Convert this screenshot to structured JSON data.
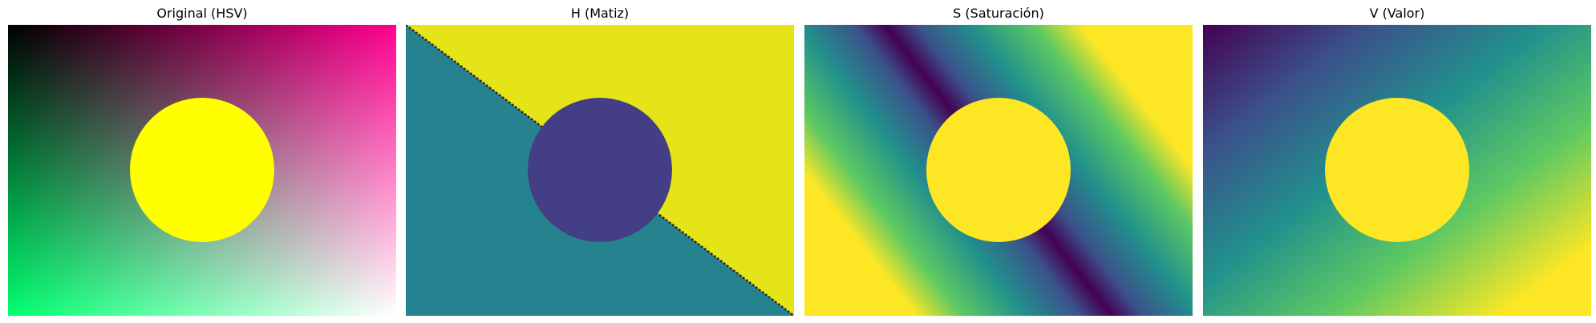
{
  "panels": [
    {
      "title": "Original (HSV)",
      "colors": {
        "top_left": "#000000",
        "top_right": "#ff0090",
        "bottom_left": "#00ff70",
        "bottom_right": "#ffffff",
        "circle": "#ffff00"
      }
    },
    {
      "title": "H (Matiz)",
      "colors": {
        "upper_triangle": "#e5e419",
        "lower_triangle": "#26828e",
        "circle": "#433e85",
        "edge": "#2a2a2a"
      }
    },
    {
      "title": "S (Saturación)",
      "colors": {
        "diagonal": "#440154",
        "near_diagonal": "#3b528b",
        "mid": "#21918c",
        "far": "#5ec962",
        "edge": "#fde725",
        "circle": "#fde725"
      }
    },
    {
      "title": "V (Valor)",
      "colors": {
        "top_left": "#440154",
        "quarter": "#3b528b",
        "middle": "#21918c",
        "three_quarter": "#5ec962",
        "bottom_right": "#fde725",
        "circle": "#fde725"
      }
    }
  ]
}
